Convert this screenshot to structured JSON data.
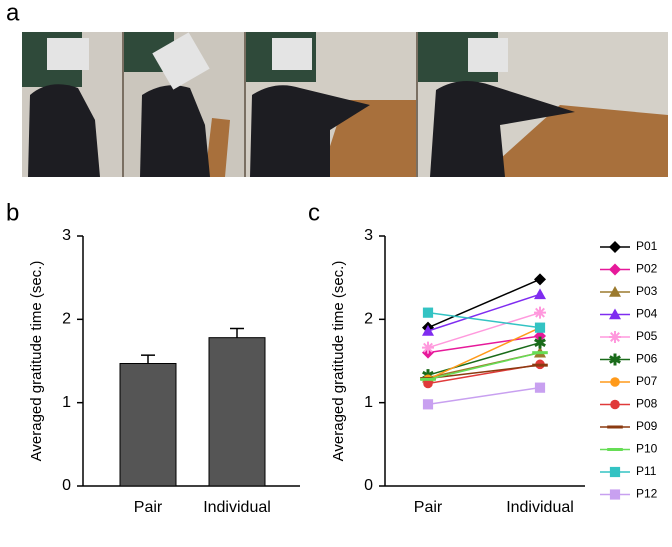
{
  "photo_panel": {
    "label": "a"
  },
  "chart_data": [
    {
      "type": "bar",
      "label": "b",
      "ylabel": "Averaged gratitude time (sec.)",
      "categories": [
        "Pair",
        "Individual"
      ],
      "values": [
        1.47,
        1.78
      ],
      "errors": [
        0.1,
        0.11
      ],
      "color": "#555555",
      "ylim": [
        0,
        3
      ],
      "yticks": [
        0,
        1,
        2,
        3
      ]
    },
    {
      "type": "line",
      "label": "c",
      "ylabel": "Averaged gratitude time (sec.)",
      "categories": [
        "Pair",
        "Individual"
      ],
      "ylim": [
        0,
        3
      ],
      "yticks": [
        0,
        1,
        2,
        3
      ],
      "series": [
        {
          "name": "P01",
          "color": "#000000",
          "marker": "diamond",
          "values": [
            1.9,
            2.48
          ]
        },
        {
          "name": "P02",
          "color": "#e6199a",
          "marker": "diamond",
          "values": [
            1.6,
            1.8
          ]
        },
        {
          "name": "P03",
          "color": "#9b7a2e",
          "marker": "triangle",
          "values": [
            1.3,
            1.6
          ]
        },
        {
          "name": "P04",
          "color": "#7f2cf0",
          "marker": "triangle",
          "values": [
            1.86,
            2.3
          ]
        },
        {
          "name": "P05",
          "color": "#ff99dd",
          "marker": "asterisk",
          "values": [
            1.66,
            2.08
          ]
        },
        {
          "name": "P06",
          "color": "#1a6b1a",
          "marker": "star",
          "values": [
            1.33,
            1.72
          ]
        },
        {
          "name": "P07",
          "color": "#ff9a1a",
          "marker": "circle",
          "values": [
            1.28,
            1.9
          ]
        },
        {
          "name": "P08",
          "color": "#e03a3a",
          "marker": "circle",
          "values": [
            1.23,
            1.46
          ]
        },
        {
          "name": "P09",
          "color": "#8b3a10",
          "marker": "dash",
          "values": [
            1.29,
            1.45
          ]
        },
        {
          "name": "P10",
          "color": "#66dd55",
          "marker": "dash",
          "values": [
            1.28,
            1.6
          ]
        },
        {
          "name": "P11",
          "color": "#33c3c3",
          "marker": "square",
          "values": [
            2.08,
            1.9
          ]
        },
        {
          "name": "P12",
          "color": "#c8a0f0",
          "marker": "square",
          "values": [
            0.98,
            1.18
          ]
        }
      ]
    }
  ]
}
